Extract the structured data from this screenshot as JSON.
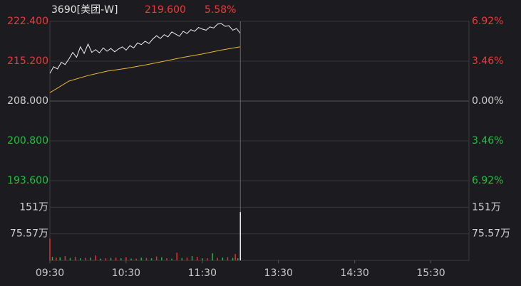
{
  "chart_data": {
    "type": "line",
    "header": {
      "code": "3690[美团-W]",
      "price": "219.600",
      "change": "5.58%"
    },
    "xlim": [
      0,
      330
    ],
    "xticks": [
      {
        "value": 0,
        "label": "09:30"
      },
      {
        "value": 60,
        "label": "10:30"
      },
      {
        "value": 120,
        "label": "11:30"
      },
      {
        "value": 180,
        "label": "13:30"
      },
      {
        "value": 240,
        "label": "14:30"
      },
      {
        "value": 300,
        "label": "15:30"
      }
    ],
    "ylim": [
      193.6,
      222.4
    ],
    "yticks": [
      {
        "value": 222.4,
        "label": "222.400"
      },
      {
        "value": 215.2,
        "label": "215.200"
      },
      {
        "value": 208,
        "label": "208.000"
      },
      {
        "value": 200.8,
        "label": "200.800"
      },
      {
        "value": 193.6,
        "label": "193.600"
      }
    ],
    "y2lim": [
      -6.92,
      6.92
    ],
    "y2ticks": [
      {
        "value": 6.92,
        "label": "6.92%"
      },
      {
        "value": 3.46,
        "label": "3.46%"
      },
      {
        "value": 0,
        "label": "0.00%"
      },
      {
        "value": -3.46,
        "label": "3.46%"
      },
      {
        "value": -6.92,
        "label": "6.92%"
      }
    ],
    "series": [
      {
        "name": "price",
        "color": "#f0f0f0",
        "x": [
          0,
          3,
          6,
          9,
          12,
          15,
          18,
          21,
          24,
          27,
          30,
          33,
          36,
          39,
          42,
          45,
          48,
          51,
          54,
          57,
          60,
          63,
          66,
          69,
          72,
          75,
          78,
          81,
          84,
          87,
          90,
          93,
          96,
          99,
          102,
          105,
          108,
          111,
          114,
          117,
          120,
          123,
          126,
          129,
          132,
          135,
          138,
          141,
          144,
          147,
          150
        ],
        "values": [
          213.0,
          214.2,
          213.8,
          215.0,
          214.6,
          215.6,
          216.8,
          215.9,
          217.8,
          216.6,
          218.3,
          216.8,
          217.3,
          216.7,
          217.6,
          217.0,
          217.5,
          216.9,
          217.4,
          217.8,
          217.2,
          218.0,
          217.6,
          218.5,
          218.2,
          218.8,
          218.4,
          219.2,
          219.8,
          219.3,
          220.0,
          219.6,
          220.5,
          220.1,
          219.7,
          220.6,
          220.2,
          220.9,
          220.6,
          221.3,
          221.0,
          220.8,
          221.4,
          221.2,
          221.9,
          222.0,
          221.5,
          221.6,
          220.8,
          221.1,
          220.2
        ]
      },
      {
        "name": "average",
        "color": "#e8b830",
        "x": [
          0,
          15,
          30,
          45,
          60,
          75,
          90,
          105,
          120,
          135,
          150
        ],
        "values": [
          209.5,
          211.6,
          212.6,
          213.4,
          213.9,
          214.5,
          215.2,
          215.9,
          216.5,
          217.2,
          217.8
        ]
      }
    ],
    "volume": {
      "ylim": [
        0,
        226.7
      ],
      "yticks": [
        {
          "value": 151,
          "label": "151万"
        },
        {
          "value": 75.57,
          "label": "75.57万"
        }
      ],
      "series": [
        {
          "name": "up",
          "color": "#e03030",
          "x": [
            0,
            5,
            12,
            20,
            28,
            36,
            44,
            52,
            60,
            68,
            76,
            84,
            92,
            100,
            108,
            116,
            124,
            132,
            140,
            146
          ],
          "values": [
            62,
            8,
            12,
            10,
            7,
            14,
            6,
            8,
            9,
            5,
            7,
            11,
            6,
            22,
            8,
            10,
            6,
            7,
            9,
            18
          ]
        },
        {
          "name": "down",
          "color": "#20b040",
          "x": [
            2,
            8,
            16,
            24,
            32,
            40,
            48,
            56,
            64,
            72,
            80,
            88,
            96,
            104,
            112,
            120,
            128,
            136,
            144,
            148
          ],
          "values": [
            10,
            9,
            7,
            6,
            8,
            5,
            7,
            6,
            5,
            8,
            6,
            9,
            5,
            7,
            12,
            6,
            20,
            8,
            7,
            6
          ]
        },
        {
          "name": "flat",
          "color": "#e8e8e8",
          "x": [
            150
          ],
          "values": [
            137.6
          ]
        }
      ]
    }
  }
}
